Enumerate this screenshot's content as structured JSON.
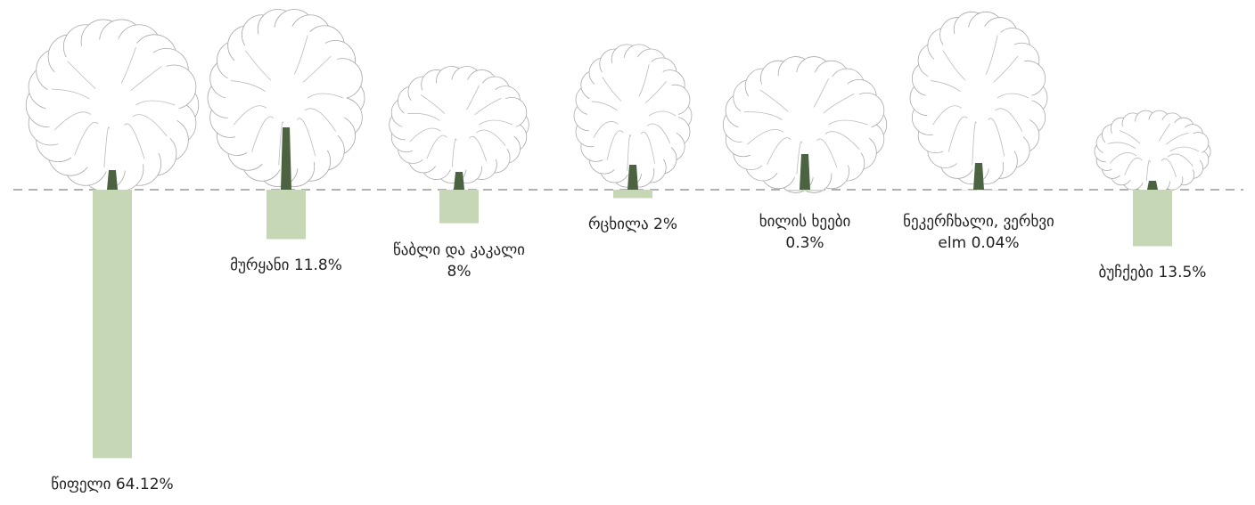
{
  "chart_data": {
    "type": "bar",
    "categories": [
      "წიფელი",
      "მურყანი",
      "წაბლი და კაკალი",
      "რცხილა",
      "ხილის ხეები",
      "ნეკერჩხალი, ვერხვი elm",
      "ბუჩქები"
    ],
    "values": [
      64.12,
      11.8,
      8,
      2,
      0.3,
      0.04,
      13.5
    ],
    "value_labels": [
      "64.12%",
      "11.8%",
      "8%",
      "2%",
      "0.3%",
      "0.04%",
      "13.5%"
    ],
    "color": "#c6d7b6"
  }
}
